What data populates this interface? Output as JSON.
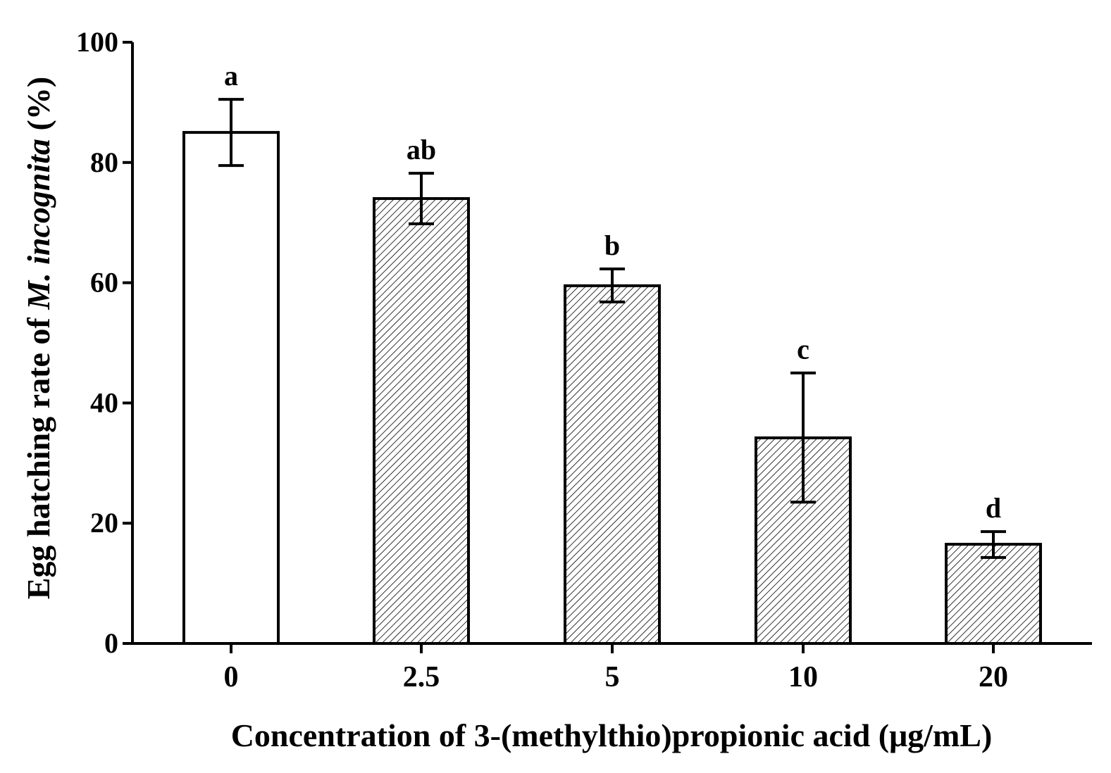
{
  "chart_data": {
    "type": "bar",
    "categories": [
      "0",
      "2.5",
      "5",
      "10",
      "20"
    ],
    "values": [
      85.0,
      74.0,
      59.5,
      34.2,
      16.5
    ],
    "error_bars": [
      {
        "low": 79.5,
        "high": 90.5
      },
      {
        "low": 69.8,
        "high": 78.2
      },
      {
        "low": 56.8,
        "high": 62.3
      },
      {
        "low": 23.5,
        "high": 45.0
      },
      {
        "low": 14.3,
        "high": 18.6
      }
    ],
    "significance_letters": [
      "a",
      "ab",
      "b",
      "c",
      "d"
    ],
    "fills": [
      "none",
      "hatched",
      "hatched",
      "hatched",
      "hatched"
    ],
    "xlabel": "Concentration of 3-(methylthio)propionic acid (μg/mL)",
    "ylabel_prefix": "Egg hatching rate of ",
    "ylabel_italic": "M. incognita",
    "ylabel_suffix": " (%)",
    "ylim": [
      0,
      100
    ],
    "yticks": [
      "0",
      "20",
      "40",
      "60",
      "80",
      "100"
    ],
    "grid": false,
    "legend": "none",
    "colors": {
      "bar_stroke": "#000000",
      "hatch": "#000000",
      "background": "#ffffff"
    }
  }
}
